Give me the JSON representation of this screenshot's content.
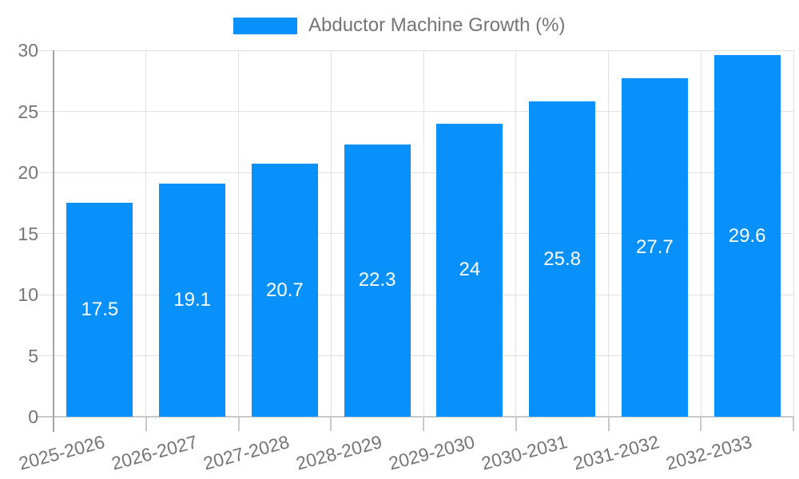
{
  "legend": {
    "label": "Abductor Machine Growth (%)"
  },
  "colors": {
    "bar": "#0991fb",
    "grid": "#e0e0e0",
    "axis_y": "#a3a3a3",
    "axis_x": "#c9c9c9",
    "tick_text": "#757575",
    "value_text": "#ffffff",
    "background": "#ffffff"
  },
  "chart_data": {
    "type": "bar",
    "title": "",
    "legend_entries": [
      "Abductor Machine Growth (%)"
    ],
    "legend_position": "top-center",
    "categories": [
      "2025-2026",
      "2026-2027",
      "2027-2028",
      "2028-2029",
      "2029-2030",
      "2030-2031",
      "2031-2032",
      "2032-2033"
    ],
    "values": [
      17.5,
      19.1,
      20.7,
      22.3,
      24,
      25.8,
      27.7,
      29.6
    ],
    "value_labels": [
      "17.5",
      "19.1",
      "20.7",
      "22.3",
      "24",
      "25.8",
      "27.7",
      "29.6"
    ],
    "xlabel": "",
    "ylabel": "",
    "ylim": [
      0,
      30
    ],
    "yticks": [
      0,
      5,
      10,
      15,
      20,
      25,
      30
    ],
    "grid": true,
    "x_label_rotation_deg": -15
  }
}
